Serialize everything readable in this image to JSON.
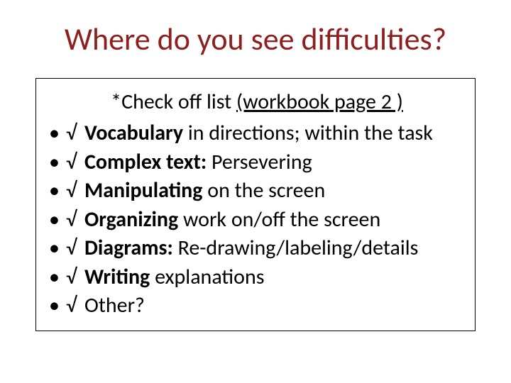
{
  "title": {
    "text": "Where do you see difficulties?",
    "color": "#8f1f1f",
    "fontsize": 44
  },
  "box": {
    "border_color": "#000000",
    "background": "#ffffff"
  },
  "subtitle": {
    "prefix": "*Check off  list ",
    "underlined": "(workbook page 2 )",
    "fontsize": 30
  },
  "bullet_char": "•",
  "check_char": "√",
  "items": [
    {
      "bold": "Vocabulary",
      "rest": " in directions; within the task"
    },
    {
      "bold": "Complex text:",
      "rest": " Persevering"
    },
    {
      "bold": "Manipulating",
      "rest": " on the screen"
    },
    {
      "bold": "Organizing",
      "rest": " work on/off the screen"
    },
    {
      "bold": "Diagrams:",
      "rest": " Re-drawing/labeling/details"
    },
    {
      "bold": "Writing",
      "rest": " explanations"
    },
    {
      "bold": "",
      "rest": "Other?"
    }
  ]
}
